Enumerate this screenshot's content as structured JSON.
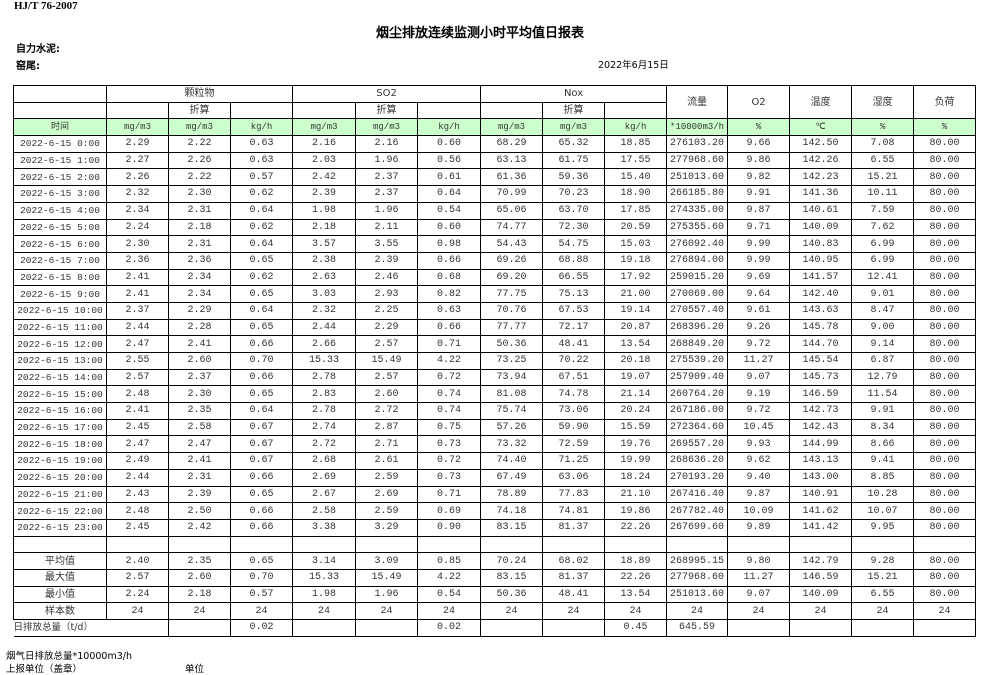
{
  "header": {
    "standard": "HJ/T  76-2007",
    "title": "烟尘排放连续监测小时平均值日报表",
    "company_label": "自力水泥:",
    "kiln_label": "窑尾:",
    "date": "2022年6月15日"
  },
  "table": {
    "groups": {
      "particulate": "颗粒物",
      "so2": "SO2",
      "nox": "Nox",
      "flow": "流量",
      "o2": "O2",
      "temperature": "温度",
      "humidity": "湿度",
      "load": "负荷"
    },
    "converted_label": "折算",
    "units": [
      "时间",
      "mg/m3",
      "mg/m3",
      "kg/h",
      "mg/m3",
      "mg/m3",
      "kg/h",
      "mg/m3",
      "mg/m3",
      "kg/h",
      "*10000m3/h",
      "%",
      "℃",
      "%",
      "%"
    ],
    "rows": [
      [
        "2022-6-15 0:00",
        "2.29",
        "2.22",
        "0.63",
        "2.16",
        "2.16",
        "0.60",
        "68.29",
        "65.32",
        "18.85",
        "276103.20",
        "9.66",
        "142.50",
        "7.08",
        "80.00"
      ],
      [
        "2022-6-15 1:00",
        "2.27",
        "2.26",
        "0.63",
        "2.03",
        "1.96",
        "0.56",
        "63.13",
        "61.75",
        "17.55",
        "277968.60",
        "9.86",
        "142.26",
        "6.55",
        "80.00"
      ],
      [
        "2022-6-15 2:00",
        "2.26",
        "2.22",
        "0.57",
        "2.42",
        "2.37",
        "0.61",
        "61.36",
        "59.36",
        "15.40",
        "251013.60",
        "9.82",
        "142.23",
        "15.21",
        "80.00"
      ],
      [
        "2022-6-15 3:00",
        "2.32",
        "2.30",
        "0.62",
        "2.39",
        "2.37",
        "0.64",
        "70.99",
        "70.23",
        "18.90",
        "266185.80",
        "9.91",
        "141.36",
        "10.11",
        "80.00"
      ],
      [
        "2022-6-15 4:00",
        "2.34",
        "2.31",
        "0.64",
        "1.98",
        "1.96",
        "0.54",
        "65.06",
        "63.70",
        "17.85",
        "274335.00",
        "9.87",
        "140.61",
        "7.59",
        "80.00"
      ],
      [
        "2022-6-15 5:00",
        "2.24",
        "2.18",
        "0.62",
        "2.18",
        "2.11",
        "0.60",
        "74.77",
        "72.30",
        "20.59",
        "275355.60",
        "9.71",
        "140.09",
        "7.62",
        "80.00"
      ],
      [
        "2022-6-15 6:00",
        "2.30",
        "2.31",
        "0.64",
        "3.57",
        "3.55",
        "0.98",
        "54.43",
        "54.75",
        "15.03",
        "276092.40",
        "9.99",
        "140.83",
        "6.99",
        "80.00"
      ],
      [
        "2022-6-15 7:00",
        "2.36",
        "2.36",
        "0.65",
        "2.38",
        "2.39",
        "0.66",
        "69.26",
        "68.88",
        "19.18",
        "276894.00",
        "9.99",
        "140.95",
        "6.99",
        "80.00"
      ],
      [
        "2022-6-15 8:00",
        "2.41",
        "2.34",
        "0.62",
        "2.63",
        "2.46",
        "0.68",
        "69.20",
        "66.55",
        "17.92",
        "259015.20",
        "9.69",
        "141.57",
        "12.41",
        "80.00"
      ],
      [
        "2022-6-15 9:00",
        "2.41",
        "2.34",
        "0.65",
        "3.03",
        "2.93",
        "0.82",
        "77.75",
        "75.13",
        "21.00",
        "270069.00",
        "9.64",
        "142.40",
        "9.01",
        "80.00"
      ],
      [
        "2022-6-15 10:00",
        "2.37",
        "2.29",
        "0.64",
        "2.32",
        "2.25",
        "0.63",
        "70.76",
        "67.53",
        "19.14",
        "270557.40",
        "9.61",
        "143.63",
        "8.47",
        "80.00"
      ],
      [
        "2022-6-15 11:00",
        "2.44",
        "2.28",
        "0.65",
        "2.44",
        "2.29",
        "0.66",
        "77.77",
        "72.17",
        "20.87",
        "268396.20",
        "9.26",
        "145.78",
        "9.00",
        "80.00"
      ],
      [
        "2022-6-15 12:00",
        "2.47",
        "2.41",
        "0.66",
        "2.66",
        "2.57",
        "0.71",
        "50.36",
        "48.41",
        "13.54",
        "268849.20",
        "9.72",
        "144.70",
        "9.14",
        "80.00"
      ],
      [
        "2022-6-15 13:00",
        "2.55",
        "2.60",
        "0.70",
        "15.33",
        "15.49",
        "4.22",
        "73.25",
        "70.22",
        "20.18",
        "275539.20",
        "11.27",
        "145.54",
        "6.87",
        "80.00"
      ],
      [
        "2022-6-15 14:00",
        "2.57",
        "2.37",
        "0.66",
        "2.78",
        "2.57",
        "0.72",
        "73.94",
        "67.51",
        "19.07",
        "257909.40",
        "9.07",
        "145.73",
        "12.79",
        "80.00"
      ],
      [
        "2022-6-15 15:00",
        "2.48",
        "2.30",
        "0.65",
        "2.83",
        "2.60",
        "0.74",
        "81.08",
        "74.78",
        "21.14",
        "260764.20",
        "9.19",
        "146.59",
        "11.54",
        "80.00"
      ],
      [
        "2022-6-15 16:00",
        "2.41",
        "2.35",
        "0.64",
        "2.78",
        "2.72",
        "0.74",
        "75.74",
        "73.06",
        "20.24",
        "267186.00",
        "9.72",
        "142.73",
        "9.91",
        "80.00"
      ],
      [
        "2022-6-15 17:00",
        "2.45",
        "2.58",
        "0.67",
        "2.74",
        "2.87",
        "0.75",
        "57.26",
        "59.90",
        "15.59",
        "272364.60",
        "10.45",
        "142.43",
        "8.34",
        "80.00"
      ],
      [
        "2022-6-15 18:00",
        "2.47",
        "2.47",
        "0.67",
        "2.72",
        "2.71",
        "0.73",
        "73.32",
        "72.59",
        "19.76",
        "269557.20",
        "9.93",
        "144.99",
        "8.66",
        "80.00"
      ],
      [
        "2022-6-15 19:00",
        "2.49",
        "2.41",
        "0.67",
        "2.68",
        "2.61",
        "0.72",
        "74.40",
        "71.25",
        "19.99",
        "268636.20",
        "9.62",
        "143.13",
        "9.41",
        "80.00"
      ],
      [
        "2022-6-15 20:00",
        "2.44",
        "2.31",
        "0.66",
        "2.69",
        "2.59",
        "0.73",
        "67.49",
        "63.06",
        "18.24",
        "270193.20",
        "9.40",
        "143.00",
        "8.85",
        "80.00"
      ],
      [
        "2022-6-15 21:00",
        "2.43",
        "2.39",
        "0.65",
        "2.67",
        "2.69",
        "0.71",
        "78.89",
        "77.83",
        "21.10",
        "267416.40",
        "9.87",
        "140.91",
        "10.28",
        "80.00"
      ],
      [
        "2022-6-15 22:00",
        "2.48",
        "2.50",
        "0.66",
        "2.58",
        "2.59",
        "0.69",
        "74.18",
        "74.81",
        "19.86",
        "267782.40",
        "10.09",
        "141.62",
        "10.07",
        "80.00"
      ],
      [
        "2022-6-15 23:00",
        "2.45",
        "2.42",
        "0.66",
        "3.38",
        "3.29",
        "0.90",
        "83.15",
        "81.37",
        "22.26",
        "267699.60",
        "9.89",
        "141.42",
        "9.95",
        "80.00"
      ]
    ],
    "summary": [
      [
        "平均值",
        "2.40",
        "2.35",
        "0.65",
        "3.14",
        "3.09",
        "0.85",
        "70.24",
        "68.02",
        "18.89",
        "268995.15",
        "9.80",
        "142.79",
        "9.28",
        "80.00"
      ],
      [
        "最大值",
        "2.57",
        "2.60",
        "0.70",
        "15.33",
        "15.49",
        "4.22",
        "83.15",
        "81.37",
        "22.26",
        "277968.60",
        "11.27",
        "146.59",
        "15.21",
        "80.00"
      ],
      [
        "最小值",
        "2.24",
        "2.18",
        "0.57",
        "1.98",
        "1.96",
        "0.54",
        "50.36",
        "48.41",
        "13.54",
        "251013.60",
        "9.07",
        "140.09",
        "6.55",
        "80.00"
      ],
      [
        "样本数",
        "24",
        "24",
        "24",
        "24",
        "24",
        "24",
        "24",
        "24",
        "24",
        "24",
        "24",
        "24",
        "24",
        "24"
      ]
    ],
    "daily_total": {
      "label": "日排放总量（t/d）",
      "cells": [
        "",
        "0.02",
        "",
        "",
        "0.02",
        "",
        "",
        "0.45",
        "645.59",
        "",
        "",
        "",
        ""
      ]
    }
  },
  "footer": {
    "flue_gas_total_label": "烟气日排放总量*10000m3/h",
    "reporting_unit_label": "上报单位（盖章）",
    "unit_label": "单位"
  }
}
